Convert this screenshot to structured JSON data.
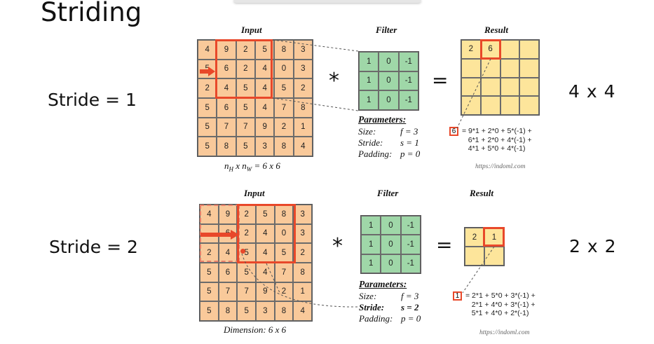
{
  "slide_title": "Striding",
  "rows": [
    {
      "stride_label": "Stride = 1",
      "output_dim": "4 x 4",
      "input_header": "Input",
      "filter_header": "Filter",
      "result_header": "Result",
      "input_matrix": [
        [
          4,
          9,
          2,
          5,
          8,
          3
        ],
        [
          5,
          6,
          2,
          4,
          0,
          3
        ],
        [
          2,
          4,
          5,
          4,
          5,
          2
        ],
        [
          5,
          6,
          5,
          4,
          7,
          8
        ],
        [
          5,
          7,
          7,
          9,
          2,
          1
        ],
        [
          5,
          8,
          5,
          3,
          8,
          4
        ]
      ],
      "filter_matrix": [
        [
          1,
          0,
          -1
        ],
        [
          1,
          0,
          -1
        ],
        [
          1,
          0,
          -1
        ]
      ],
      "result_values": [
        "2",
        "6"
      ],
      "input_caption": "n",
      "caption_sub_h": "H",
      "caption_x": " x n",
      "caption_sub_w": "W",
      "caption_tail": " = 6 x 6",
      "params_title": "Parameters:",
      "params": [
        {
          "key": "Size:",
          "val": "f = 3"
        },
        {
          "key": "Stride:",
          "val": "s = 1"
        },
        {
          "key": "Padding:",
          "val": "p = 0"
        }
      ],
      "formula_value": "6",
      "formula": "= 9*1 + 2*0 + 5*(-1) +\n   6*1 + 2*0 + 4*(-1) +\n   4*1 + 5*0 + 4*(-1)",
      "url": "https://indoml.com"
    },
    {
      "stride_label": "Stride = 2",
      "output_dim": "2 x 2",
      "input_header": "Input",
      "filter_header": "Filter",
      "result_header": "Result",
      "input_matrix": [
        [
          4,
          9,
          2,
          5,
          8,
          3
        ],
        [
          "",
          6,
          2,
          4,
          0,
          3
        ],
        [
          2,
          4,
          5,
          4,
          5,
          2
        ],
        [
          5,
          6,
          5,
          4,
          7,
          8
        ],
        [
          5,
          7,
          7,
          9,
          2,
          1
        ],
        [
          5,
          8,
          5,
          3,
          8,
          4
        ]
      ],
      "filter_matrix": [
        [
          1,
          0,
          -1
        ],
        [
          1,
          0,
          -1
        ],
        [
          1,
          0,
          -1
        ]
      ],
      "result_values": [
        "2",
        "1"
      ],
      "input_caption": "Dimension: 6 x 6",
      "params_title": "Parameters:",
      "params": [
        {
          "key": "Size:",
          "val": "f = 3"
        },
        {
          "key": "Stride:",
          "val": "s = 2"
        },
        {
          "key": "Padding:",
          "val": "p = 0"
        }
      ],
      "formula_value": "1",
      "formula": "= 2*1 + 5*0 + 3*(-1) +\n   2*1 + 4*0 + 3*(-1) +\n   5*1 + 4*0 + 2*(-1)",
      "url": "https://indoml.com"
    }
  ],
  "operators": {
    "conv": "*",
    "equals": "="
  },
  "colors": {
    "input_fill": "#f9c99a",
    "filter_fill": "#9fd7a8",
    "result_fill": "#fde59b",
    "highlight": "#e8482a"
  }
}
